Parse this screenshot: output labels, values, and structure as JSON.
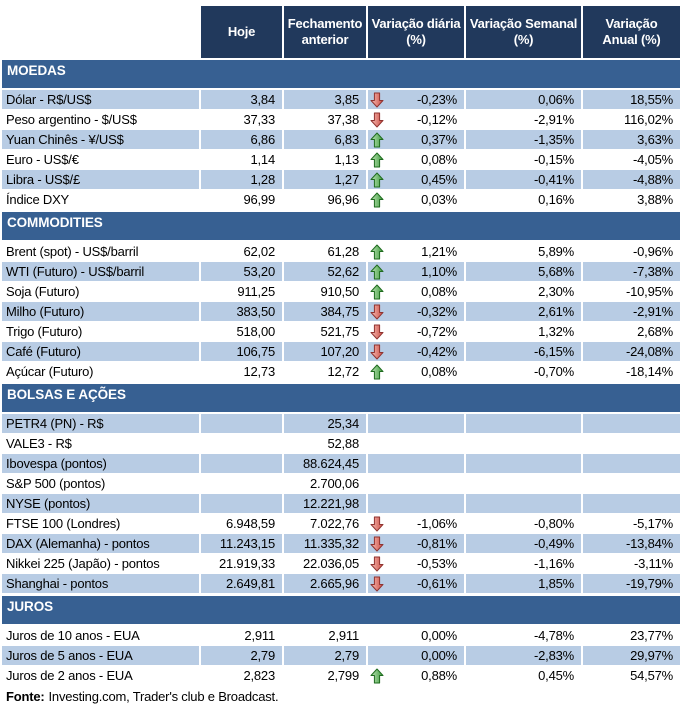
{
  "colors": {
    "header_bg": "#21395C",
    "section_bg": "#376092",
    "row_shaded_bg": "#B8CCE4",
    "row_white_bg": "#FFFFFF",
    "header_text": "#FFFFFF",
    "body_text": "#000000",
    "arrow_up_fill": "#3E9B3E",
    "arrow_up_border": "#1E6B1E",
    "arrow_down_fill": "#CC4B42",
    "arrow_down_border": "#8F3330"
  },
  "footer": {
    "label": "Fonte:",
    "text": "Investing.com, Trader's club e Broadcast."
  },
  "chart_data": {
    "type": "table",
    "columns": [
      {
        "label": "Hoje"
      },
      {
        "label": "Fechamento\nanterior"
      },
      {
        "label": "Variação diária\n(%)"
      },
      {
        "label": "Variação Semanal\n(%)"
      },
      {
        "label": "Variação\nAnual (%)"
      }
    ],
    "sections": [
      {
        "title": "MOEDAS",
        "first_row_shaded": true,
        "rows": [
          {
            "label": "Dólar - R$/US$",
            "hoje": "3,84",
            "fechamento": "3,85",
            "arrow": "down",
            "diaria": "-0,23%",
            "semanal": "0,06%",
            "anual": "18,55%"
          },
          {
            "label": "Peso argentino - $/US$",
            "hoje": "37,33",
            "fechamento": "37,38",
            "arrow": "down",
            "diaria": "-0,12%",
            "semanal": "-2,91%",
            "anual": "116,02%"
          },
          {
            "label": "Yuan Chinês - ¥/US$",
            "hoje": "6,86",
            "fechamento": "6,83",
            "arrow": "up",
            "diaria": "0,37%",
            "semanal": "-1,35%",
            "anual": "3,63%"
          },
          {
            "label": "Euro - US$/€",
            "hoje": "1,14",
            "fechamento": "1,13",
            "arrow": "up",
            "diaria": "0,08%",
            "semanal": "-0,15%",
            "anual": "-4,05%"
          },
          {
            "label": "Libra - US$/£",
            "hoje": "1,28",
            "fechamento": "1,27",
            "arrow": "up",
            "diaria": "0,45%",
            "semanal": "-0,41%",
            "anual": "-4,88%"
          },
          {
            "label": "Índice DXY",
            "hoje": "96,99",
            "fechamento": "96,96",
            "arrow": "up",
            "diaria": "0,03%",
            "semanal": "0,16%",
            "anual": "3,88%"
          }
        ]
      },
      {
        "title": "COMMODITIES",
        "first_row_shaded": false,
        "rows": [
          {
            "label": "Brent (spot) - US$/barril",
            "hoje": "62,02",
            "fechamento": "61,28",
            "arrow": "up",
            "diaria": "1,21%",
            "semanal": "5,89%",
            "anual": "-0,96%"
          },
          {
            "label": "WTI (Futuro) - US$/barril",
            "hoje": "53,20",
            "fechamento": "52,62",
            "arrow": "up",
            "diaria": "1,10%",
            "semanal": "5,68%",
            "anual": "-7,38%"
          },
          {
            "label": "Soja (Futuro)",
            "hoje": "911,25",
            "fechamento": "910,50",
            "arrow": "up",
            "diaria": "0,08%",
            "semanal": "2,30%",
            "anual": "-10,95%"
          },
          {
            "label": "Milho (Futuro)",
            "hoje": "383,50",
            "fechamento": "384,75",
            "arrow": "down",
            "diaria": "-0,32%",
            "semanal": "2,61%",
            "anual": "-2,91%"
          },
          {
            "label": "Trigo (Futuro)",
            "hoje": "518,00",
            "fechamento": "521,75",
            "arrow": "down",
            "diaria": "-0,72%",
            "semanal": "1,32%",
            "anual": "2,68%"
          },
          {
            "label": "Café (Futuro)",
            "hoje": "106,75",
            "fechamento": "107,20",
            "arrow": "down",
            "diaria": "-0,42%",
            "semanal": "-6,15%",
            "anual": "-24,08%"
          },
          {
            "label": "Açúcar (Futuro)",
            "hoje": "12,73",
            "fechamento": "12,72",
            "arrow": "up",
            "diaria": "0,08%",
            "semanal": "-0,70%",
            "anual": "-18,14%"
          }
        ]
      },
      {
        "title": "BOLSAS E AÇÕES",
        "first_row_shaded": true,
        "rows": [
          {
            "label": "PETR4 (PN) - R$",
            "hoje": "",
            "fechamento": "25,34",
            "arrow": "",
            "diaria": "",
            "semanal": "",
            "anual": ""
          },
          {
            "label": "VALE3 - R$",
            "hoje": "",
            "fechamento": "52,88",
            "arrow": "",
            "diaria": "",
            "semanal": "",
            "anual": ""
          },
          {
            "label": "Ibovespa (pontos)",
            "hoje": "",
            "fechamento": "88.624,45",
            "arrow": "",
            "diaria": "",
            "semanal": "",
            "anual": ""
          },
          {
            "label": "S&P 500 (pontos)",
            "hoje": "",
            "fechamento": "2.700,06",
            "arrow": "",
            "diaria": "",
            "semanal": "",
            "anual": ""
          },
          {
            "label": "NYSE (pontos)",
            "hoje": "",
            "fechamento": "12.221,98",
            "arrow": "",
            "diaria": "",
            "semanal": "",
            "anual": ""
          },
          {
            "label": "FTSE 100 (Londres)",
            "hoje": "6.948,59",
            "fechamento": "7.022,76",
            "arrow": "down",
            "diaria": "-1,06%",
            "semanal": "-0,80%",
            "anual": "-5,17%"
          },
          {
            "label": "DAX (Alemanha) - pontos",
            "hoje": "11.243,15",
            "fechamento": "11.335,32",
            "arrow": "down",
            "diaria": "-0,81%",
            "semanal": "-0,49%",
            "anual": "-13,84%"
          },
          {
            "label": "Nikkei 225 (Japão) - pontos",
            "hoje": "21.919,33",
            "fechamento": "22.036,05",
            "arrow": "down",
            "diaria": "-0,53%",
            "semanal": "-1,16%",
            "anual": "-3,11%"
          },
          {
            "label": "Shanghai - pontos",
            "hoje": "2.649,81",
            "fechamento": "2.665,96",
            "arrow": "down",
            "diaria": "-0,61%",
            "semanal": "1,85%",
            "anual": "-19,79%"
          }
        ]
      },
      {
        "title": "JUROS",
        "first_row_shaded": false,
        "rows": [
          {
            "label": "Juros de 10 anos - EUA",
            "hoje": "2,911",
            "fechamento": "2,911",
            "arrow": "",
            "diaria": "0,00%",
            "semanal": "-4,78%",
            "anual": "23,77%"
          },
          {
            "label": "Juros de 5 anos - EUA",
            "hoje": "2,79",
            "fechamento": "2,79",
            "arrow": "",
            "diaria": "0,00%",
            "semanal": "-2,83%",
            "anual": "29,97%"
          },
          {
            "label": "Juros de 2 anos - EUA",
            "hoje": "2,823",
            "fechamento": "2,799",
            "arrow": "up",
            "diaria": "0,88%",
            "semanal": "0,45%",
            "anual": "54,57%"
          }
        ]
      }
    ]
  }
}
